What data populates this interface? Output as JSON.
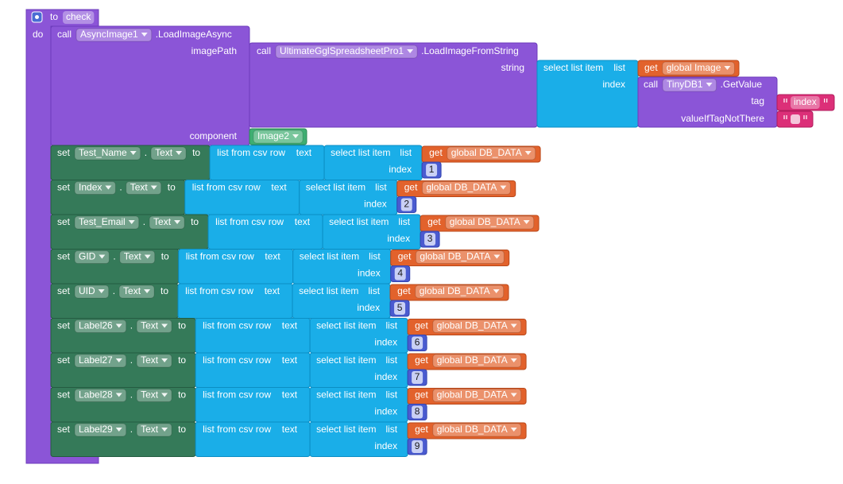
{
  "procedure": {
    "keyword": "to",
    "name": "check",
    "body_label": "do"
  },
  "load_image": {
    "call": "call",
    "component": "AsyncImage1",
    "method": ".LoadImageAsync",
    "image_path_label": "imagePath",
    "component_label": "component",
    "component_value": "Image2",
    "image_path": {
      "call": "call",
      "component": "UltimateGglSpreadsheetPro1",
      "method": ".LoadImageFromString",
      "string_label": "string",
      "string": {
        "block": "select list item",
        "list_label": "list",
        "list": {
          "get": "get",
          "variable": "global Image"
        },
        "index_label": "index",
        "index": {
          "call": "call",
          "component": "TinyDB1",
          "method": ".GetValue",
          "tag_label": "tag",
          "tag": "index",
          "default_label": "valueIfTagNotThere"
        }
      }
    }
  },
  "set_block": {
    "set": "set",
    "dot": ".",
    "to": "to",
    "csv": "list from csv row",
    "text_label": "text",
    "select": "select list item",
    "list_label": "list",
    "get": "get",
    "variable": "global DB_DATA",
    "index_label": "index"
  },
  "set_rows": [
    {
      "component": "Test_Name",
      "property": "Text",
      "index": 1
    },
    {
      "component": "Index",
      "property": "Text",
      "index": 2
    },
    {
      "component": "Test_Email",
      "property": "Text",
      "index": 3
    },
    {
      "component": "GID",
      "property": "Text",
      "index": 4
    },
    {
      "component": "UID",
      "property": "Text",
      "index": 5
    },
    {
      "component": "Label26",
      "property": "Text",
      "index": 6
    },
    {
      "component": "Label27",
      "property": "Text",
      "index": 7
    },
    {
      "component": "Label28",
      "property": "Text",
      "index": 8
    },
    {
      "component": "Label29",
      "property": "Text",
      "index": 9
    }
  ]
}
